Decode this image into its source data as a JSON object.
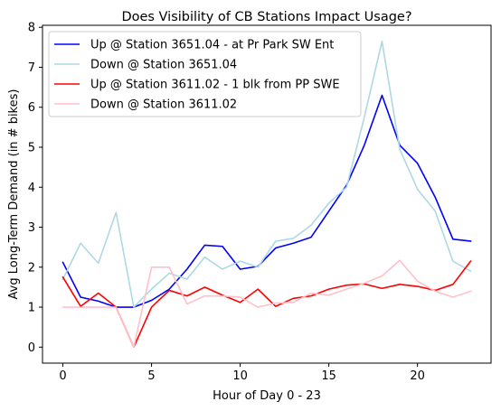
{
  "chart_data": {
    "type": "line",
    "title": "Does Visibility of CB Stations Impact Usage?",
    "xlabel": "Hour of Day 0 - 23",
    "ylabel": "Avg Long-Term Demand (in # bikes)",
    "xlim": [
      -1.15,
      24.15
    ],
    "ylim": [
      -0.4,
      8.05
    ],
    "xticks": [
      0,
      5,
      10,
      15,
      20
    ],
    "yticks": [
      0,
      1,
      2,
      3,
      4,
      5,
      6,
      7,
      8
    ],
    "grid": false,
    "legend_position": "upper-left",
    "x": [
      0,
      1,
      2,
      3,
      4,
      5,
      6,
      7,
      8,
      9,
      10,
      11,
      12,
      13,
      14,
      15,
      16,
      17,
      18,
      19,
      20,
      21,
      22,
      23
    ],
    "series": [
      {
        "name": "Up @ Station 3651.04 - at Pr Park SW Ent",
        "color": "#0000ff",
        "values": [
          2.12,
          1.25,
          1.15,
          1.0,
          1.0,
          1.17,
          1.45,
          1.95,
          2.55,
          2.52,
          1.95,
          2.02,
          2.48,
          2.6,
          2.75,
          3.4,
          4.05,
          5.05,
          6.3,
          5.05,
          4.6,
          3.75,
          2.7,
          2.65
        ]
      },
      {
        "name": "Down @ Station 3651.04",
        "color": "#add8e6",
        "values": [
          1.7,
          2.6,
          2.1,
          3.37,
          1.0,
          1.45,
          1.85,
          1.7,
          2.25,
          1.95,
          2.15,
          2.0,
          2.65,
          2.72,
          3.05,
          3.6,
          4.0,
          5.75,
          7.65,
          4.95,
          3.95,
          3.4,
          2.15,
          1.9
        ]
      },
      {
        "name": "Up @ Station 3611.02 - 1 blk from PP SWE",
        "color": "#ff0000",
        "values": [
          1.75,
          1.02,
          1.35,
          1.0,
          0.0,
          1.0,
          1.42,
          1.28,
          1.5,
          1.3,
          1.12,
          1.45,
          1.02,
          1.22,
          1.28,
          1.45,
          1.55,
          1.58,
          1.47,
          1.57,
          1.52,
          1.42,
          1.57,
          2.15
        ]
      },
      {
        "name": "Down @ Station 3611.02",
        "color": "#ffc0cb",
        "values": [
          1.0,
          1.0,
          1.0,
          1.0,
          0.0,
          2.0,
          2.0,
          1.08,
          1.28,
          1.28,
          1.25,
          1.0,
          1.1,
          1.12,
          1.35,
          1.3,
          1.45,
          1.6,
          1.78,
          2.17,
          1.65,
          1.4,
          1.25,
          1.4
        ]
      }
    ]
  }
}
